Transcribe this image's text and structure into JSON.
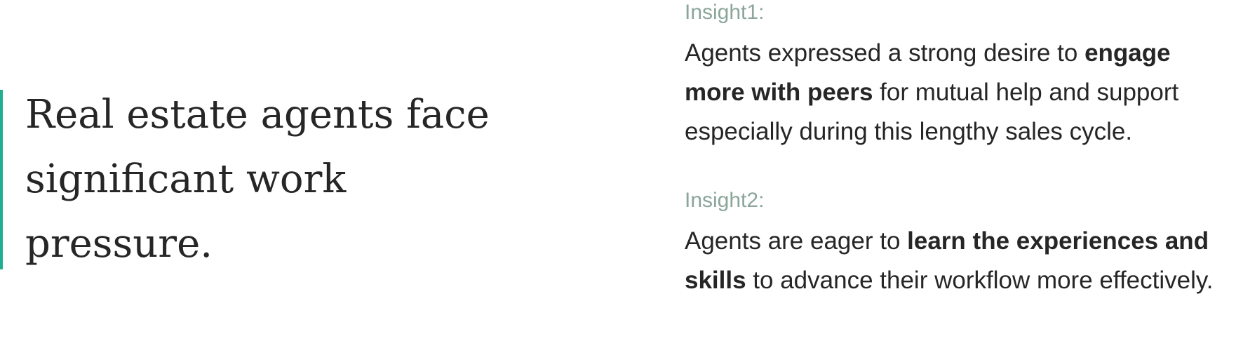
{
  "quote": {
    "text": "Real estate agents face significant work pressure.",
    "accent_color": "#1fae8f"
  },
  "insights": [
    {
      "label": "Insight1:",
      "pre": "Agents expressed a strong desire to ",
      "bold": "engage more with peers",
      "post": " for mutual help and support especially during this lengthy sales cycle."
    },
    {
      "label": "Insight2:",
      "pre": "Agents are eager to ",
      "bold": "learn the experiences and skills",
      "post": " to advance their workflow more effectively."
    }
  ]
}
